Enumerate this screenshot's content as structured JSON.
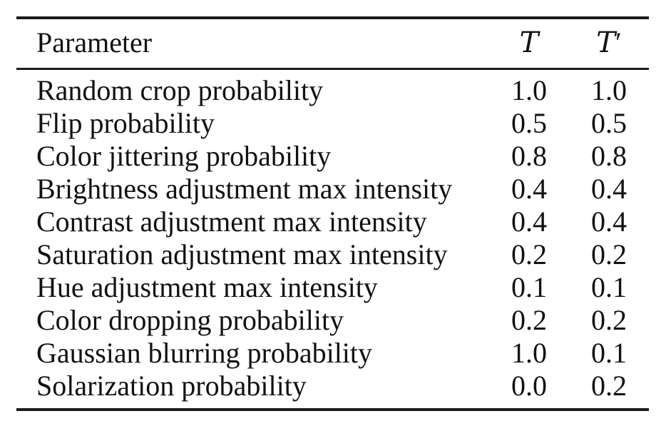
{
  "page": {
    "background": "#ffffff"
  },
  "table": {
    "header": {
      "parameter": "Parameter",
      "t": "T",
      "prime": "′"
    },
    "rows": [
      {
        "parameter": "Random crop probability",
        "t": "1.0",
        "t_prime": "1.0"
      },
      {
        "parameter": "Flip probability",
        "t": "0.5",
        "t_prime": "0.5"
      },
      {
        "parameter": "Color jittering probability",
        "t": "0.8",
        "t_prime": "0.8"
      },
      {
        "parameter": "Brightness adjustment max intensity",
        "t": "0.4",
        "t_prime": "0.4"
      },
      {
        "parameter": "Contrast adjustment max intensity",
        "t": "0.4",
        "t_prime": "0.4"
      },
      {
        "parameter": "Saturation adjustment max intensity",
        "t": "0.2",
        "t_prime": "0.2"
      },
      {
        "parameter": "Hue adjustment max intensity",
        "t": "0.1",
        "t_prime": "0.1"
      },
      {
        "parameter": "Color dropping probability",
        "t": "0.2",
        "t_prime": "0.2"
      },
      {
        "parameter": "Gaussian blurring probability",
        "t": "1.0",
        "t_prime": "0.1"
      },
      {
        "parameter": "Solarization probability",
        "t": "0.0",
        "t_prime": "0.2"
      }
    ],
    "colors": {
      "text": "#111111",
      "rule": "#1c1c1c",
      "background": "#ffffff"
    }
  }
}
